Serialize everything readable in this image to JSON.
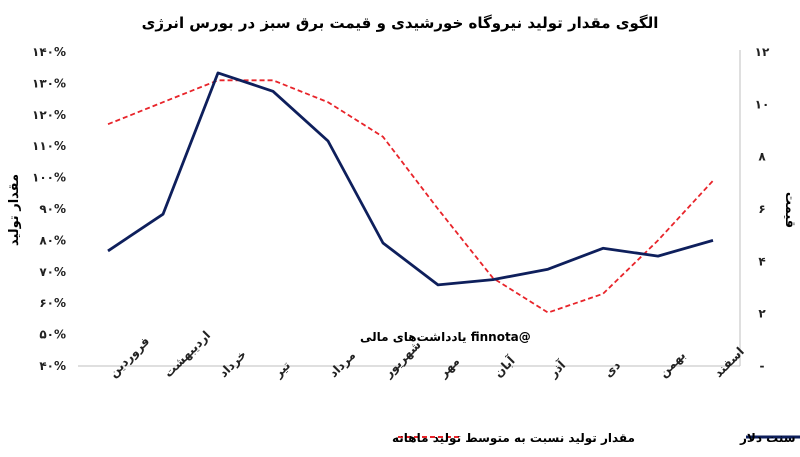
{
  "chart_data": {
    "type": "line",
    "title": "الگوی مقدار تولید نیروگاه خورشیدی و قیمت برق سبز در بورس انرژی",
    "categories": [
      "فروردین",
      "اردیبهشت",
      "خرداد",
      "تیر",
      "مرداد",
      "شهریور",
      "مهر",
      "آبان",
      "آذر",
      "دی",
      "بهمن",
      "اسفند"
    ],
    "left_axis": {
      "label": "مقدار تولید",
      "ticks": [
        "۴۰%",
        "۵۰%",
        "۶۰%",
        "۷۰%",
        "۸۰%",
        "۹۰%",
        "۱۰۰%",
        "۱۱۰%",
        "۱۲۰%",
        "۱۳۰%",
        "۱۴۰%"
      ],
      "range": [
        40,
        140
      ]
    },
    "right_axis": {
      "label": "قیمت",
      "ticks": [
        "-",
        "۲",
        "۴",
        "۶",
        "۸",
        "۱۰",
        "۱۲"
      ],
      "range": [
        0,
        12
      ]
    },
    "series": [
      {
        "name": "مقدار تولید نسبت به متوسط تولید ماهانه",
        "axis": "left",
        "style": "dashed",
        "color": "#e8242a",
        "values": [
          117,
          124,
          131,
          131,
          124,
          113,
          90,
          68,
          57,
          63,
          80,
          99
        ]
      },
      {
        "name": "قیمت هر کیلووات ساعت برق سبز- سنت دلار",
        "axis": "right",
        "style": "solid",
        "color": "#0e1f5c",
        "values": [
          4.4,
          5.8,
          11.2,
          10.5,
          8.6,
          4.7,
          3.1,
          3.3,
          3.7,
          4.5,
          4.2,
          4.8
        ]
      }
    ],
    "watermark": "@finnota یادداشت‌های مالی"
  }
}
